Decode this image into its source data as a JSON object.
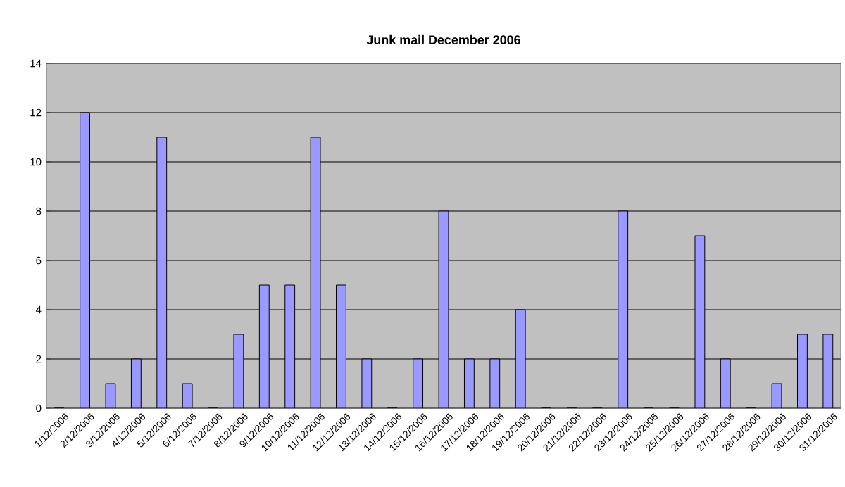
{
  "chart_data": {
    "type": "bar",
    "title": "Junk mail December 2006",
    "categories": [
      "1/12/2006",
      "2/12/2006",
      "3/12/2006",
      "4/12/2006",
      "5/12/2006",
      "6/12/2006",
      "7/12/2006",
      "8/12/2006",
      "9/12/2006",
      "10/12/2006",
      "11/12/2006",
      "12/12/2006",
      "13/12/2006",
      "14/12/2006",
      "15/12/2006",
      "16/12/2006",
      "17/12/2006",
      "18/12/2006",
      "19/12/2006",
      "20/12/2006",
      "21/12/2006",
      "22/12/2006",
      "23/12/2006",
      "24/12/2006",
      "25/12/2006",
      "26/12/2006",
      "27/12/2006",
      "28/12/2006",
      "29/12/2006",
      "30/12/2006",
      "31/12/2006"
    ],
    "values": [
      0,
      12,
      1,
      2,
      11,
      1,
      0,
      3,
      5,
      5,
      11,
      5,
      2,
      0,
      2,
      8,
      2,
      2,
      4,
      0,
      0,
      0,
      8,
      0,
      0,
      7,
      2,
      0,
      1,
      3,
      3
    ],
    "color": "#9999ff",
    "ylim": [
      0,
      14
    ],
    "yticks": [
      0,
      2,
      4,
      6,
      8,
      10,
      12,
      14
    ],
    "grid": "y"
  }
}
